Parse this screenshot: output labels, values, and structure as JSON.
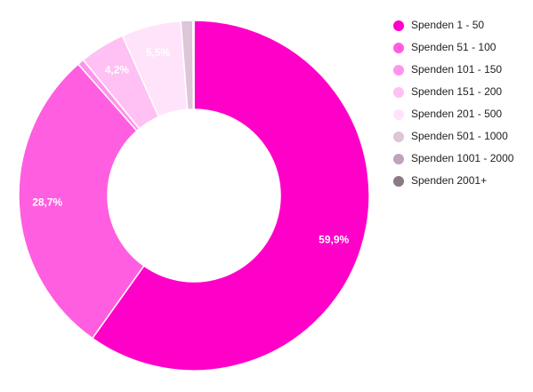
{
  "chart_data": {
    "type": "pie",
    "variant": "donut",
    "categories": [
      "Spenden 1 - 50",
      "Spenden 51 - 100",
      "Spenden 101 - 150",
      "Spenden 151 - 200",
      "Spenden 201 - 500",
      "Spenden 501 - 1000",
      "Spenden 1001 - 2000",
      "Spenden 2001+"
    ],
    "values": [
      59.9,
      28.7,
      0.6,
      4.2,
      5.5,
      1.1,
      0.05,
      0.05
    ],
    "data_labels": [
      "59,9%",
      "28,7%",
      "",
      "4,2%",
      "5,5%",
      "",
      "",
      ""
    ],
    "colors": [
      "#ff00c8",
      "#ff5ee0",
      "#ff94ec",
      "#ffc0f3",
      "#ffe3fa",
      "#dcc6d8",
      "#bfa3bb",
      "#8a7a86"
    ],
    "legend_position": "right",
    "grid": false
  }
}
